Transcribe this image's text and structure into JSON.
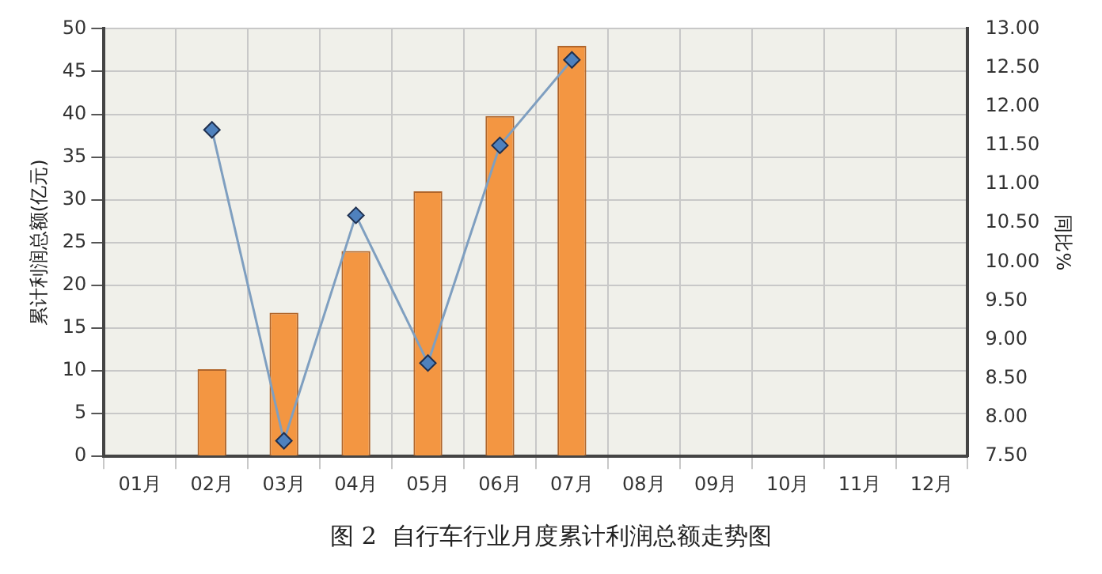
{
  "chart_data": {
    "type": "bar",
    "title": "图 2  自行车行业月度累计利润总额走势图",
    "ylabel": "累计利润总额(亿元)",
    "y2label": "同比%",
    "categories": [
      "01月",
      "02月",
      "03月",
      "04月",
      "05月",
      "06月",
      "07月",
      "08月",
      "09月",
      "10月",
      "11月",
      "12月"
    ],
    "series": [
      {
        "color": "#f39642",
        "values": [
          null,
          10.2,
          16.8,
          24,
          31,
          39.8,
          48,
          null,
          null,
          null,
          null,
          null
        ]
      },
      {
        "type": "line",
        "axis": "y2",
        "color": "#7f9fc0",
        "marker": "diamond",
        "values": [
          null,
          11.7,
          7.7,
          10.6,
          8.7,
          11.5,
          12.6,
          null,
          null,
          null,
          null,
          null
        ]
      }
    ],
    "ylim": [
      0,
      50
    ],
    "yticks": [
      0,
      5,
      10,
      15,
      20,
      25,
      30,
      35,
      40,
      45,
      50
    ],
    "y2lim": [
      7.5,
      13
    ],
    "y2ticks": [
      {
        "value": 7.5,
        "label": "7.50"
      },
      {
        "value": 8,
        "label": "8.00"
      },
      {
        "value": 8.5,
        "label": "8.50"
      },
      {
        "value": 9,
        "label": "9.00"
      },
      {
        "value": 9.5,
        "label": "9.50"
      },
      {
        "value": 10,
        "label": "10.00"
      },
      {
        "value": 10.5,
        "label": "10.50"
      },
      {
        "value": 11,
        "label": "11.00"
      },
      {
        "value": 11.5,
        "label": "11.50"
      },
      {
        "value": 12,
        "label": "12.00"
      },
      {
        "value": 12.5,
        "label": "12.50"
      },
      {
        "value": 13,
        "label": "13.00"
      }
    ],
    "grid": true,
    "legend": false
  }
}
